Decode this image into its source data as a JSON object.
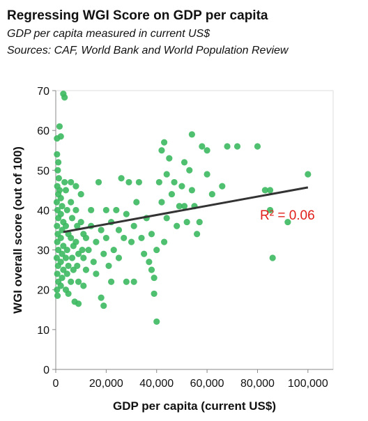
{
  "chart_data": {
    "type": "scatter",
    "title": "Regressing WGI Score on GDP per capita",
    "subtitle": [
      "GDP per capita measured in current US$",
      "Sources: CAF, World Bank and World Population Review"
    ],
    "x_label": "GDP per capita (current US$)",
    "y_label": "WGI overall score (out of 100)",
    "xlim": [
      0,
      110000
    ],
    "ylim": [
      0,
      70
    ],
    "xticks": [
      {
        "value": 0,
        "label": "0"
      },
      {
        "value": 20000,
        "label": "20,000"
      },
      {
        "value": 40000,
        "label": "40,000"
      },
      {
        "value": 60000,
        "label": "60,000"
      },
      {
        "value": 80000,
        "label": "80,000"
      },
      {
        "value": 100000,
        "label": "100,000"
      }
    ],
    "yticks": [
      0,
      10,
      20,
      30,
      40,
      50,
      60,
      70
    ],
    "grid": false,
    "series": [
      {
        "color": "#3cb95f",
        "x": [
          3000,
          3500,
          1500,
          500,
          2000,
          500,
          1000,
          800,
          1200,
          600,
          1000,
          400,
          700,
          1000,
          500,
          800,
          600,
          1000,
          400,
          900,
          600,
          1000,
          500,
          700,
          1500,
          2000,
          2500,
          2000,
          3000,
          2500,
          2000,
          3000,
          2500,
          2000,
          3000,
          2500,
          2000,
          3500,
          4000,
          4500,
          4000,
          5000,
          4500,
          4000,
          5000,
          4500,
          4000,
          5000,
          6000,
          6000,
          6500,
          6000,
          7000,
          6500,
          7000,
          6000,
          8000,
          8000,
          8500,
          8000,
          9000,
          8500,
          9000,
          7500,
          9000,
          10000,
          10000,
          11000,
          10500,
          11000,
          12000,
          11000,
          12000,
          13000,
          14000,
          14000,
          15000,
          16000,
          16000,
          17000,
          18000,
          18000,
          19000,
          19000,
          20000,
          20000,
          21000,
          22000,
          22000,
          23000,
          24000,
          25000,
          25000,
          26000,
          27000,
          28000,
          28000,
          29000,
          30000,
          31000,
          31000,
          32000,
          33000,
          34000,
          35000,
          36000,
          37000,
          38000,
          38000,
          39000,
          39000,
          40000,
          40000,
          41000,
          42000,
          42000,
          43000,
          43000,
          44000,
          44000,
          45000,
          46000,
          47000,
          48000,
          49000,
          50000,
          51000,
          51000,
          52000,
          53000,
          54000,
          54000,
          55000,
          56000,
          57000,
          58000,
          60000,
          60000,
          62000,
          66000,
          68000,
          72000,
          80000,
          83000,
          85000,
          85000,
          86000,
          92000,
          100000
        ],
        "y": [
          69.2,
          68.3,
          61,
          58,
          58.5,
          54,
          52,
          50,
          48,
          46,
          44,
          42,
          40,
          38,
          36,
          34,
          32,
          30,
          28,
          26,
          24,
          22,
          20,
          18.5,
          45,
          43,
          41,
          39,
          37,
          35,
          33,
          31,
          29,
          27,
          25,
          23,
          21,
          47,
          45,
          40,
          36,
          34,
          30,
          28,
          26,
          24,
          20,
          19,
          47,
          42,
          38,
          33,
          31,
          28,
          25,
          22,
          46,
          40,
          36,
          32,
          29,
          26,
          22,
          17,
          16.5,
          44,
          37,
          34,
          30,
          28,
          25,
          21,
          33,
          30,
          40,
          36,
          27,
          32,
          24,
          47,
          35,
          18,
          16,
          29,
          40,
          33,
          26,
          37,
          22,
          30,
          40,
          35,
          28,
          48,
          33,
          39,
          22,
          47,
          32,
          36,
          22,
          42,
          47,
          33,
          29,
          38,
          27,
          34,
          25,
          19,
          23,
          12,
          30,
          47,
          55,
          42,
          57,
          32,
          49,
          38,
          53,
          44,
          47,
          36,
          41,
          46,
          52,
          41,
          37,
          50,
          59,
          45,
          41,
          34,
          37,
          56,
          49,
          55,
          44,
          46,
          56,
          56,
          56,
          45,
          45,
          40,
          28,
          37,
          49
        ]
      }
    ],
    "trendline": {
      "color": "#333333",
      "x": [
        3000,
        100000
      ],
      "y": [
        34.5,
        45.7
      ]
    },
    "annotation": {
      "text": "R² = 0.06",
      "color": "#e0201b"
    }
  }
}
